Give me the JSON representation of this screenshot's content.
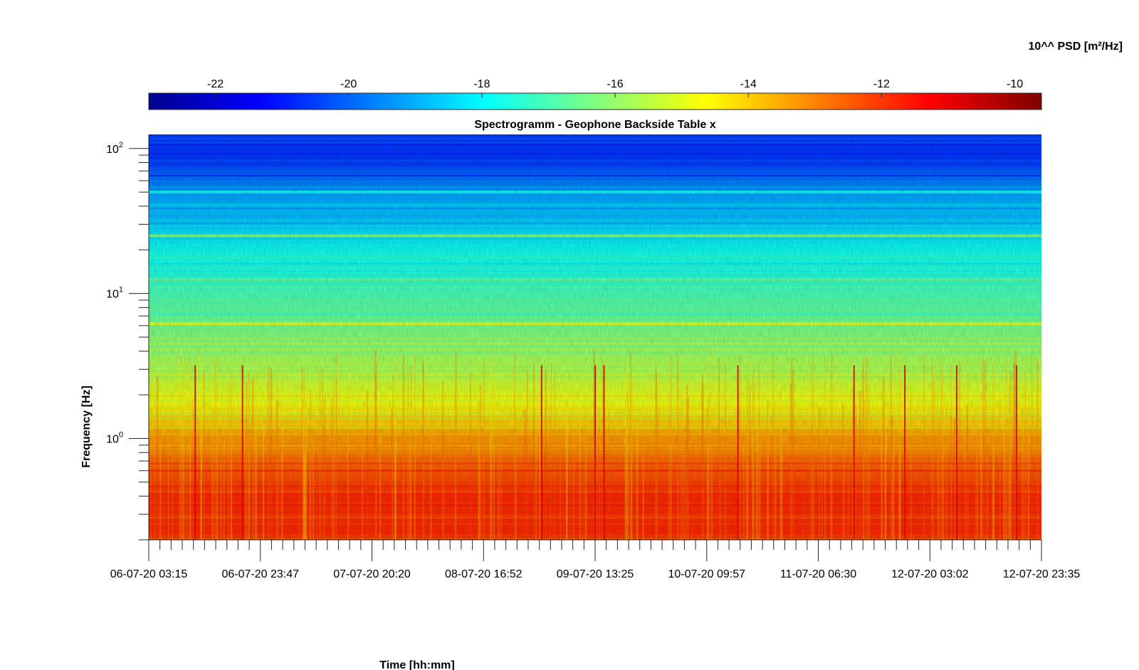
{
  "chart_data": {
    "type": "heatmap",
    "title": "Spectrogramm - Geophone Backside Table x",
    "xlabel": "Time [hh:mm]",
    "ylabel": "Frequency [Hz]",
    "colorbar": {
      "label": "10^^ PSD [m²/Hz]",
      "range": [
        -23,
        -9.6
      ],
      "ticks": [
        -22,
        -20,
        -18,
        -16,
        -14,
        -12,
        -10
      ],
      "tick_labels": [
        "-22",
        "-20",
        "-18",
        "-16",
        "-14",
        "-12",
        "-10"
      ],
      "colormap": "jet",
      "placement": "top"
    },
    "x_ticks": [
      "06-07-20 03:15",
      "06-07-20 23:47",
      "07-07-20 20:20",
      "08-07-20 16:52",
      "09-07-20 13:25",
      "10-07-20 09:57",
      "11-07-20 06:30",
      "12-07-20 03:02",
      "12-07-20 23:35"
    ],
    "x_range": [
      "06-07-20 03:15",
      "12-07-20 23:35"
    ],
    "y_scale": "log",
    "y_range": [
      0.2,
      125
    ],
    "y_ticks": [
      {
        "value": 1,
        "base": "10",
        "exp": "0"
      },
      {
        "value": 10,
        "base": "10",
        "exp": "1"
      },
      {
        "value": 100,
        "base": "10",
        "exp": "2"
      }
    ],
    "bands": [
      {
        "f_min": 0.2,
        "f_max": 0.78,
        "level": -11.8
      },
      {
        "f_min": 0.78,
        "f_max": 1.2,
        "level": -13.2
      },
      {
        "f_min": 1.2,
        "f_max": 2.6,
        "level": -14.8
      },
      {
        "f_min": 2.6,
        "f_max": 5.5,
        "level": -15.9
      },
      {
        "f_min": 5.5,
        "f_max": 12,
        "level": -16.8
      },
      {
        "f_min": 12,
        "f_max": 30,
        "level": -17.8
      },
      {
        "f_min": 30,
        "f_max": 60,
        "level": -19.0
      },
      {
        "f_min": 60,
        "f_max": 125,
        "level": -20.6
      }
    ],
    "lines": [
      {
        "freq": 6.2,
        "level": -14.9
      },
      {
        "freq": 25,
        "level": -16.2
      },
      {
        "freq": 50,
        "level": -17.8
      },
      {
        "freq": 12.5,
        "level": -16.6
      }
    ],
    "events_time_fraction": [
      0.052,
      0.105,
      0.44,
      0.5,
      0.51,
      0.66,
      0.79,
      0.847,
      0.905,
      0.972
    ]
  }
}
